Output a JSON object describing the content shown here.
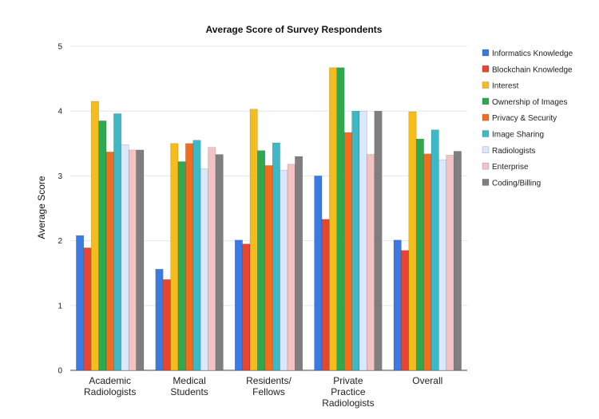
{
  "chart_data": {
    "type": "bar",
    "title": "Average Score of Survey Respondents",
    "xlabel": "",
    "ylabel": "Average Score",
    "ylim": [
      0,
      5
    ],
    "yticks": [
      "0",
      "1",
      "2",
      "3",
      "4",
      "5"
    ],
    "grid": "horizontal",
    "legend_position": "right",
    "categories": [
      [
        "Academic",
        "Radiologists"
      ],
      [
        "Medical",
        "Students"
      ],
      [
        "Residents/",
        "Fellows"
      ],
      [
        "Private",
        "Practice",
        "Radiologists"
      ],
      [
        "Overall"
      ]
    ],
    "series": [
      {
        "name": "Informatics Knowledge",
        "color": "#3b7ae0",
        "values": [
          2.08,
          1.56,
          2.01,
          3.0,
          2.01
        ]
      },
      {
        "name": "Blockchain Knowledge",
        "color": "#e64530",
        "values": [
          1.89,
          1.4,
          1.95,
          2.33,
          1.85
        ]
      },
      {
        "name": "Interest",
        "color": "#f4bc1c",
        "values": [
          4.15,
          3.5,
          4.03,
          4.67,
          3.99
        ]
      },
      {
        "name": "Ownership of Images",
        "color": "#2fa84f",
        "values": [
          3.85,
          3.22,
          3.39,
          4.67,
          3.57
        ]
      },
      {
        "name": "Privacy & Security",
        "color": "#f26d1d",
        "values": [
          3.37,
          3.5,
          3.16,
          3.67,
          3.34
        ]
      },
      {
        "name": "Image Sharing",
        "color": "#3eb8c4",
        "values": [
          3.96,
          3.55,
          3.51,
          4.0,
          3.71
        ]
      },
      {
        "name": "Radiologists",
        "color": "#dbe7fb",
        "values": [
          3.48,
          3.11,
          3.09,
          4.0,
          3.25
        ]
      },
      {
        "name": "Enterprise",
        "color": "#f3c2c2",
        "values": [
          3.4,
          3.44,
          3.18,
          3.33,
          3.32
        ]
      },
      {
        "name": "Coding/Billing",
        "color": "#7f7f7f",
        "values": [
          3.4,
          3.33,
          3.3,
          4.0,
          3.38
        ]
      }
    ]
  }
}
